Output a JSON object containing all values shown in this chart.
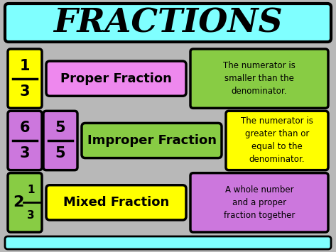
{
  "title": "FRACTIONS",
  "title_bg": "#7fffff",
  "main_bg_top": "#c8c8c8",
  "main_bg_bot": "#a0a0a0",
  "footer_bg": "#7fffff",
  "rows": [
    {
      "fraction_boxes": [
        {
          "numerator": "1",
          "denominator": "3",
          "whole": null,
          "bg": "#ffff00",
          "border": "#000000"
        }
      ],
      "label": "Proper Fraction",
      "label_bg": "#ee88ee",
      "desc": "The numerator is\nsmaller than the\ndenominator.",
      "desc_bg": "#88cc44"
    },
    {
      "fraction_boxes": [
        {
          "numerator": "6",
          "denominator": "3",
          "whole": null,
          "bg": "#cc77dd",
          "border": "#000000"
        },
        {
          "numerator": "5",
          "denominator": "5",
          "whole": null,
          "bg": "#cc77dd",
          "border": "#000000"
        }
      ],
      "label": "Improper Fraction",
      "label_bg": "#88cc44",
      "desc": "The numerator is\ngreater than or\nequal to the\ndenominator.",
      "desc_bg": "#ffff00"
    },
    {
      "fraction_boxes": [
        {
          "numerator": "1",
          "denominator": "3",
          "whole": "2",
          "bg": "#88cc44",
          "border": "#000000"
        }
      ],
      "label": "Mixed Fraction",
      "label_bg": "#ffff00",
      "desc": "A whole number\nand a proper\nfraction together",
      "desc_bg": "#cc77dd"
    }
  ]
}
